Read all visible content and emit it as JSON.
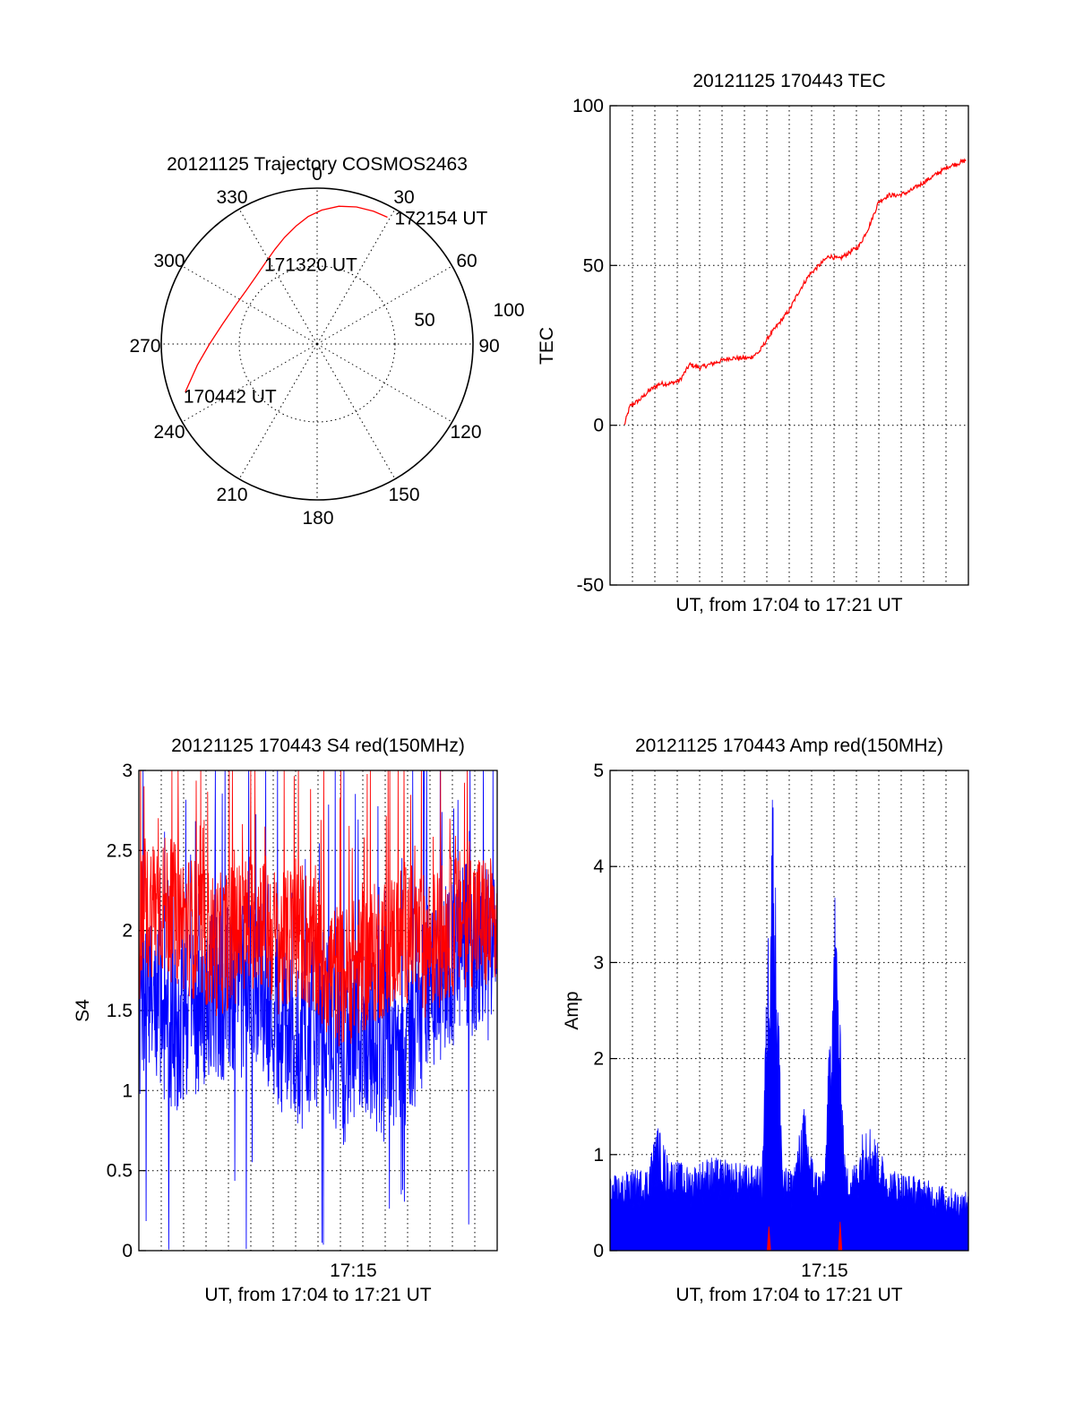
{
  "colors": {
    "red_series": "#ff0000",
    "blue_series": "#0000ff",
    "axes": "#000000"
  },
  "chart_data": [
    {
      "id": "trajectory",
      "type": "polar",
      "title": "20121125 Trajectory COSMOS2463",
      "azimuth_labels": [
        "0",
        "30",
        "60",
        "90",
        "120",
        "150",
        "180",
        "210",
        "240",
        "270",
        "300",
        "330"
      ],
      "radial_labels": [
        "50",
        "100"
      ],
      "rlim": [
        0,
        100
      ],
      "grid": true,
      "trajectory": [
        {
          "az": 250,
          "r": 90
        },
        {
          "az": 260,
          "r": 78
        },
        {
          "az": 270,
          "r": 69
        },
        {
          "az": 282,
          "r": 62
        },
        {
          "az": 295,
          "r": 58
        },
        {
          "az": 307,
          "r": 57
        },
        {
          "az": 318,
          "r": 58.5
        },
        {
          "az": 328,
          "r": 62
        },
        {
          "az": 336,
          "r": 66.5
        },
        {
          "az": 343,
          "r": 71.5
        },
        {
          "az": 350,
          "r": 77
        },
        {
          "az": 356,
          "r": 82
        },
        {
          "az": 2,
          "r": 86
        },
        {
          "az": 9,
          "r": 89.5
        },
        {
          "az": 16,
          "r": 91.5
        },
        {
          "az": 23,
          "r": 92.5
        },
        {
          "az": 29,
          "r": 93
        }
      ],
      "annotations": [
        {
          "text": "172154 UT",
          "az": 29,
          "r": 93
        },
        {
          "text": "171320 UT",
          "az": 2,
          "r": 48
        },
        {
          "text": "170442 UT",
          "az": 250,
          "r": 90
        }
      ]
    },
    {
      "id": "tec",
      "type": "line",
      "title": "20121125 170443 TEC",
      "xlabel": "UT, from 17:04 to 17:21 UT",
      "ylabel": "TEC",
      "ylim": [
        -50,
        100
      ],
      "yticks": [
        "-50",
        "0",
        "50",
        "100"
      ],
      "xlim": [
        170400,
        172200
      ],
      "xticks": [],
      "grid": true,
      "series": [
        {
          "color": "red",
          "x": [
            170443,
            170500,
            170530,
            170600,
            170630,
            170700,
            170730,
            170800,
            170830,
            170900,
            170930,
            171000,
            171030,
            171100,
            171130,
            171200,
            171230,
            171300,
            171330,
            171400,
            171430,
            171500,
            171530,
            171600,
            171630,
            171700,
            171730,
            171800,
            171830,
            171900,
            171930,
            172000,
            172030,
            172100,
            172130,
            172154
          ],
          "values": [
            0,
            6,
            8,
            11,
            13,
            13,
            14,
            19,
            18,
            19,
            20,
            21,
            21,
            21,
            23,
            28,
            32,
            36,
            42,
            47,
            50,
            53,
            52,
            54,
            56,
            62,
            70,
            72,
            72,
            73,
            75,
            77,
            79,
            81,
            82,
            83
          ]
        }
      ]
    },
    {
      "id": "s4",
      "type": "line",
      "title": "20121125 170443 S4 red(150MHz)",
      "xlabel": "UT, from 17:04 to 17:21 UT",
      "ylabel": "S4",
      "ylim": [
        0,
        3
      ],
      "yticks": [
        "0",
        "0.5",
        "1",
        "1.5",
        "2",
        "2.5",
        "3"
      ],
      "xlim": [
        170443,
        172154
      ],
      "xticks": [
        {
          "label": "17:15",
          "x": 171500
        }
      ],
      "grid": true,
      "series": [
        {
          "color": "red",
          "x": [
            170443,
            170530,
            170630,
            170730,
            170830,
            170930,
            171030,
            171130,
            171230,
            171330,
            171430,
            171530,
            171630,
            171730,
            171830,
            171930,
            172030,
            172154
          ],
          "values": [
            2.0,
            2.2,
            2.1,
            2.0,
            1.9,
            2.0,
            2.1,
            1.9,
            2.0,
            1.8,
            1.7,
            1.8,
            1.9,
            2.0,
            1.9,
            2.0,
            2.1,
            2.0
          ]
        },
        {
          "color": "blue",
          "x": [
            170443,
            170530,
            170630,
            170730,
            170830,
            170930,
            171030,
            171130,
            171230,
            171330,
            171430,
            171530,
            171630,
            171730,
            171830,
            171930,
            172030,
            172154
          ],
          "values": [
            1.5,
            1.5,
            1.4,
            1.5,
            1.6,
            1.6,
            1.7,
            1.4,
            1.3,
            1.5,
            1.2,
            1.4,
            1.2,
            1.3,
            1.6,
            1.8,
            1.9,
            1.8
          ]
        }
      ]
    },
    {
      "id": "amp",
      "type": "area",
      "title": "20121125 170443 Amp red(150MHz)",
      "xlabel": "UT, from 17:04 to 17:21 UT",
      "ylabel": "Amp",
      "ylim": [
        0,
        5
      ],
      "yticks": [
        "0",
        "1",
        "2",
        "3",
        "4",
        "5"
      ],
      "xlim": [
        170443,
        172154
      ],
      "xticks": [
        {
          "label": "17:15",
          "x": 171500
        }
      ],
      "grid": true,
      "series": [
        {
          "color": "blue",
          "x": [
            170443,
            170530,
            170630,
            170700,
            170730,
            170830,
            170930,
            171030,
            171200,
            171230,
            171300,
            171330,
            171400,
            171430,
            171500,
            171530,
            171600,
            171630,
            171700,
            171800,
            171930,
            172100,
            172154
          ],
          "values": [
            0.7,
            0.75,
            0.8,
            1.2,
            0.9,
            0.8,
            0.9,
            0.85,
            0.8,
            4.7,
            0.8,
            0.75,
            1.4,
            0.8,
            0.75,
            3.5,
            0.8,
            0.85,
            1.3,
            0.8,
            0.7,
            0.6,
            0.55
          ]
        },
        {
          "color": "red",
          "x": [
            171215,
            171220,
            171225,
            171540,
            171545,
            171550
          ],
          "values": [
            0,
            0.25,
            0,
            0,
            0.3,
            0
          ]
        }
      ]
    }
  ]
}
